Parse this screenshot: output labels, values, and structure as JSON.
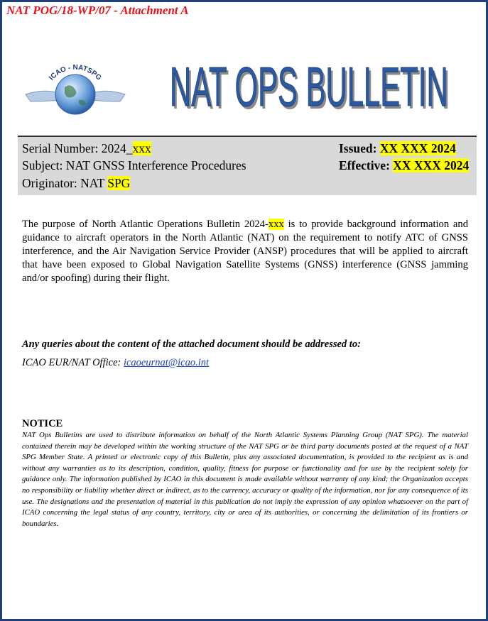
{
  "header": {
    "reference": "NAT POG/18-WP/07 - Attachment A"
  },
  "logo": {
    "text": "ICAO - NATSPG"
  },
  "banner": {
    "title": "NAT OPS BULLETIN"
  },
  "info": {
    "serial": {
      "label": "Serial Number: 2024_",
      "highlight": "xxx"
    },
    "subject": {
      "label": "Subject: NAT GNSS Interference Procedures"
    },
    "originator": {
      "label": "Originator: NAT",
      "highlight": "SPG"
    },
    "issued": {
      "label": "Issued:",
      "highlight": "XX XXX 2024"
    },
    "effective": {
      "label": "Effective:",
      "highlight": "XX XXX 2024"
    }
  },
  "purpose": {
    "before": "The purpose of North Atlantic Operations Bulletin 2024-",
    "highlight": "xxx",
    "after": " is to provide background information and guidance to aircraft operators in the North Atlantic (NAT) on the requirement to notify ATC of GNSS interference, and the Air Navigation Service Provider (ANSP) procedures that will be applied to aircraft that have been exposed to Global Navigation Satellite Systems (GNSS) interference (GNSS jamming and/or spoofing) during their flight."
  },
  "queries": {
    "text": "Any queries about the content of the attached document should be addressed to:",
    "office": "ICAO EUR/NAT Office:",
    "email": "icaoeurnat@icao.int"
  },
  "notice": {
    "heading": "NOTICE",
    "text": "NAT Ops Bulletins are used to distribute information on behalf of the North Atlantic Systems Planning Group (NAT SPG). The material contained therein may be developed within the working structure of the NAT SPG or be third party documents posted at the request of a NAT SPG Member State. A printed or electronic copy of this Bulletin, plus any associated documentation, is provided to the recipient as is and without any warranties as to its description, condition, quality, fitness for purpose or functionality and for use by the recipient solely for guidance only. The information published by ICAO in this document is made available without warranty of any kind; the Organization accepts no responsibility or liability whether direct or indirect, as to the currency, accuracy or quality of the information, nor for any consequence of its use. The designations and the presentation of material in this publication do not imply the expression of any opinion whatsoever on the part of ICAO concerning the legal status of any country, territory, city or area of its authorities, or concerning the delimitation of its frontiers or boundaries."
  }
}
